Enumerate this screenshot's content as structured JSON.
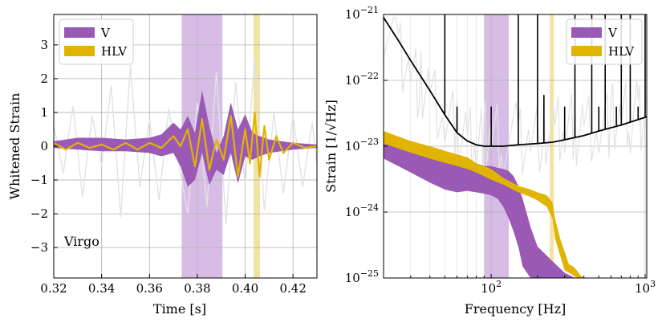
{
  "colors": {
    "v": "#9b59b6",
    "hlv": "#e0b400",
    "v_band": "#d7bde6",
    "hlv_band": "#f2e3a4",
    "noise": "#e2e2e2",
    "psd": "#000000"
  },
  "chart_data": [
    {
      "type": "line",
      "name": "time-domain",
      "xlabel": "Time [s]",
      "ylabel": "Whitened Strain",
      "xlim": [
        0.32,
        0.43
      ],
      "ylim": [
        -3.9,
        3.9
      ],
      "xticks": [
        0.32,
        0.34,
        0.36,
        0.38,
        0.4,
        0.42
      ],
      "xtick_labels": [
        "0.32",
        "0.34",
        "0.36",
        "0.38",
        "0.40",
        "0.42"
      ],
      "yticks": [
        -3,
        -2,
        -1,
        0,
        1,
        2,
        3
      ],
      "ytick_labels": [
        "−3",
        "−2",
        "−1",
        "0",
        "1",
        "2",
        "3"
      ],
      "annotation": "Virgo",
      "legend": [
        "V",
        "HLV"
      ],
      "legend_position": "top-left",
      "shaded_regions": [
        {
          "series": "V",
          "x": [
            0.3735,
            0.3905
          ]
        },
        {
          "series": "HLV",
          "x": [
            0.4035,
            0.4062
          ]
        }
      ],
      "series": [
        {
          "name": "V",
          "style": "band",
          "x": [
            0.32,
            0.33,
            0.34,
            0.35,
            0.36,
            0.365,
            0.37,
            0.373,
            0.376,
            0.379,
            0.382,
            0.385,
            0.388,
            0.391,
            0.394,
            0.397,
            0.4,
            0.403,
            0.406,
            0.41,
            0.415,
            0.42,
            0.43
          ],
          "upper": [
            0.15,
            0.25,
            0.25,
            0.2,
            0.25,
            0.35,
            0.7,
            0.5,
            0.9,
            0.4,
            1.65,
            0.6,
            -0.2,
            0.3,
            1.3,
            0.5,
            0.95,
            0.4,
            0.3,
            0.2,
            0.15,
            0.1,
            0.05
          ],
          "lower": [
            -0.05,
            -0.1,
            -0.15,
            -0.15,
            -0.2,
            -0.3,
            -0.2,
            -0.6,
            -1.2,
            -1.0,
            -0.2,
            -1.15,
            -0.7,
            -0.85,
            -0.2,
            -1.1,
            -0.3,
            -0.4,
            -0.3,
            -0.2,
            -0.15,
            -0.1,
            -0.05
          ]
        },
        {
          "name": "HLV",
          "style": "line",
          "x": [
            0.32,
            0.325,
            0.33,
            0.335,
            0.34,
            0.345,
            0.35,
            0.355,
            0.36,
            0.365,
            0.37,
            0.373,
            0.376,
            0.379,
            0.382,
            0.385,
            0.388,
            0.391,
            0.394,
            0.397,
            0.4,
            0.402,
            0.404,
            0.406,
            0.408,
            0.41,
            0.413,
            0.416,
            0.42,
            0.425,
            0.43
          ],
          "y": [
            0.1,
            -0.1,
            0.1,
            -0.05,
            0.05,
            -0.1,
            0.1,
            -0.1,
            0.1,
            -0.05,
            0.3,
            0.0,
            0.5,
            -0.6,
            0.8,
            -0.7,
            0.2,
            -0.4,
            0.9,
            -0.9,
            0.5,
            -0.5,
            1.0,
            -0.9,
            0.6,
            -0.4,
            0.3,
            -0.2,
            0.1,
            -0.05,
            0.0
          ]
        },
        {
          "name": "Virgo",
          "style": "noise",
          "x": [
            0.32,
            0.324,
            0.328,
            0.332,
            0.336,
            0.34,
            0.344,
            0.348,
            0.352,
            0.356,
            0.36,
            0.364,
            0.368,
            0.372,
            0.376,
            0.38,
            0.384,
            0.388,
            0.392,
            0.396,
            0.4,
            0.404,
            0.408,
            0.412,
            0.416,
            0.42,
            0.424,
            0.428,
            0.43
          ],
          "y": [
            0.6,
            -0.8,
            1.2,
            -1.5,
            0.9,
            -0.6,
            1.8,
            -2.1,
            2.4,
            -1.2,
            0.8,
            -1.6,
            1.1,
            -0.4,
            -2.0,
            1.3,
            -1.8,
            2.2,
            -2.3,
            1.9,
            -1.2,
            2.6,
            -1.9,
            1.0,
            -1.4,
            0.9,
            -1.2,
            0.7,
            -0.5
          ]
        }
      ]
    },
    {
      "type": "line",
      "name": "frequency-domain",
      "xlabel": "Frequency [Hz]",
      "ylabel": "Strain [1/√Hz]",
      "xscale": "log",
      "yscale": "log",
      "xlim": [
        20,
        1024
      ],
      "ylim": [
        1e-25,
        1e-21
      ],
      "xtick_labels": [
        "10",
        "2",
        "10",
        "3"
      ],
      "xtick_values": [
        100,
        1000
      ],
      "ytick_labels": [
        "10",
        "−25",
        "10",
        "−24",
        "10",
        "−23",
        "10",
        "−22",
        "10",
        "−21"
      ],
      "ytick_values": [
        1e-25,
        1e-24,
        1e-23,
        1e-22,
        1e-21
      ],
      "legend": [
        "V",
        "HLV"
      ],
      "legend_position": "top-right",
      "shaded_regions": [
        {
          "series": "V",
          "x": [
            90,
            130
          ]
        },
        {
          "series": "HLV",
          "x": [
            240,
            255
          ]
        }
      ],
      "series": [
        {
          "name": "V",
          "style": "band",
          "x": [
            20,
            30,
            40,
            50,
            60,
            70,
            80,
            90,
            100,
            110,
            120,
            130,
            140,
            150,
            160,
            180,
            200,
            250,
            300,
            350,
            400
          ],
          "upper": [
            1.6e-23,
            1.1e-23,
            8e-24,
            6.5e-24,
            6e-24,
            5.5e-24,
            5.5e-24,
            5e-24,
            5e-24,
            4.7e-24,
            4.5e-24,
            4.2e-24,
            3.5e-24,
            2.5e-24,
            1.6e-24,
            6e-25,
            3e-25,
            1.8e-25,
            1.2e-25,
            1e-25,
            1e-25
          ],
          "lower": [
            6.5e-24,
            4e-24,
            2.8e-24,
            2.2e-24,
            2e-24,
            2.1e-24,
            2e-24,
            1.9e-24,
            1.8e-24,
            1.6e-24,
            1.2e-24,
            8e-25,
            5e-25,
            3e-25,
            1.5e-25,
            1e-25,
            1e-25,
            1e-25,
            1e-25,
            1e-25,
            1e-25
          ]
        },
        {
          "name": "HLV",
          "style": "band",
          "x": [
            20,
            30,
            40,
            50,
            60,
            70,
            80,
            100,
            120,
            150,
            180,
            200,
            230,
            250,
            260,
            280,
            300,
            320,
            340,
            360,
            380,
            400
          ],
          "upper": [
            1.7e-23,
            1.2e-23,
            1e-23,
            8.5e-24,
            7.5e-24,
            6.8e-24,
            5.5e-24,
            4.5e-24,
            3.3e-24,
            2.5e-24,
            2.2e-24,
            2e-24,
            1.8e-24,
            1.4e-24,
            8e-25,
            4e-25,
            2.5e-25,
            1.6e-25,
            1.5e-25,
            1.3e-25,
            1.1e-25,
            1e-25
          ],
          "lower": [
            1.1e-23,
            8e-24,
            6.5e-24,
            5.6e-24,
            5e-24,
            4.5e-24,
            4e-24,
            3.1e-24,
            2.6e-24,
            2e-24,
            1.7e-24,
            1.5e-24,
            1.2e-24,
            8e-25,
            4e-25,
            2.2e-25,
            1.3e-25,
            1.2e-25,
            1.1e-25,
            1e-25,
            1e-25,
            1e-25
          ]
        },
        {
          "name": "PSD",
          "style": "line",
          "x": [
            20,
            25,
            30,
            40,
            50,
            60,
            70,
            80,
            90,
            100,
            120,
            150,
            200,
            250,
            300,
            400,
            500,
            700,
            1024
          ],
          "y": [
            9e-22,
            4e-22,
            2e-22,
            7e-23,
            3e-23,
            1.6e-23,
            1.2e-23,
            1.05e-23,
            1e-23,
            1e-23,
            1e-23,
            1.05e-23,
            1.1e-23,
            1.15e-23,
            1.25e-23,
            1.45e-23,
            1.7e-23,
            2.1e-23,
            2.8e-23
          ]
        },
        {
          "name": "PSD-lines",
          "style": "spikes",
          "x": [
            50,
            60,
            100,
            150,
            200,
            220,
            300,
            350,
            450,
            500,
            550,
            650,
            700,
            800,
            900,
            1000
          ],
          "y": [
            1e-21,
            4e-23,
            4e-23,
            1e-21,
            1e-21,
            6e-23,
            4e-23,
            1e-21,
            1e-21,
            4e-23,
            1e-21,
            4e-23,
            1e-21,
            1e-21,
            4e-23,
            1e-21
          ]
        },
        {
          "name": "Noise",
          "style": "noise",
          "x": [
            20,
            25,
            30,
            35,
            40,
            50,
            60,
            70,
            80,
            90,
            100,
            120,
            150,
            180,
            220,
            260,
            300,
            350,
            400,
            500,
            600,
            700,
            800,
            900,
            1024
          ],
          "y": [
            8e-22,
            3e-22,
            1.5e-22,
            8e-23,
            5e-23,
            2.5e-23,
            1.8e-23,
            1.5e-23,
            1.3e-23,
            1.4e-23,
            1.2e-23,
            1.3e-23,
            1.3e-23,
            1.4e-23,
            1.5e-23,
            1.6e-23,
            1.7e-23,
            1.8e-23,
            2e-23,
            2.2e-23,
            2.4e-23,
            2.6e-23,
            2.8e-23,
            3e-23,
            3.2e-23
          ]
        }
      ]
    }
  ]
}
